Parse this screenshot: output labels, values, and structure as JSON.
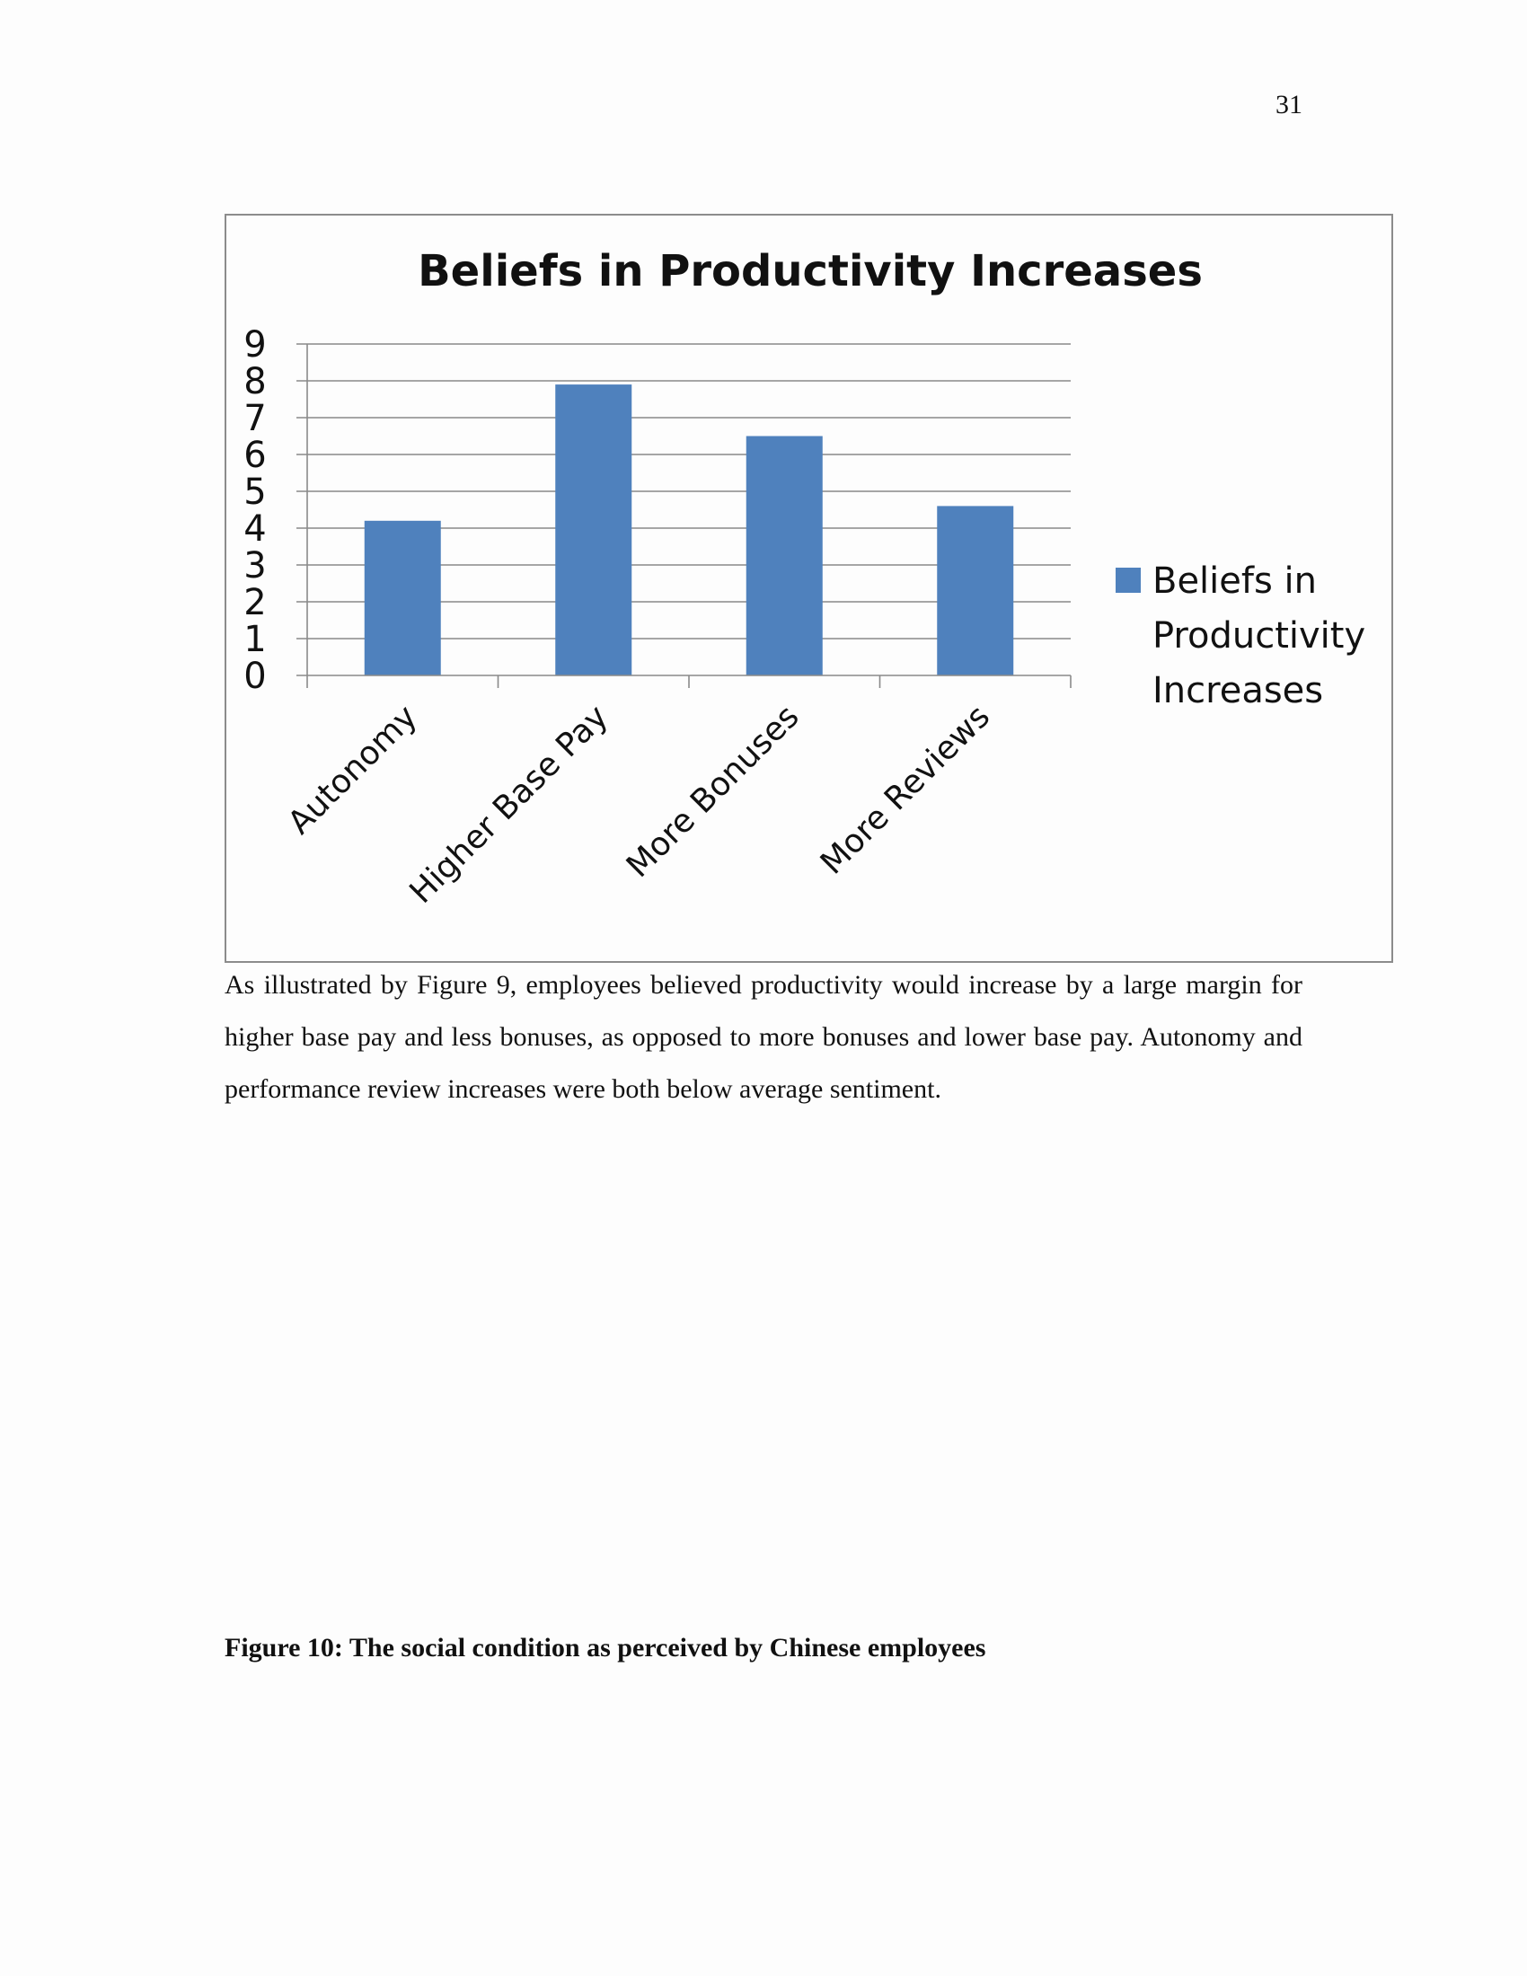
{
  "page_number": "31",
  "chart_data": {
    "type": "bar",
    "title": "Beliefs in Productivity Increases",
    "categories": [
      "Autonomy",
      "Higher Base Pay",
      "More Bonuses",
      "More Reviews"
    ],
    "series": [
      {
        "name": "Beliefs in Productivity Increases",
        "values": [
          4.2,
          7.9,
          6.5,
          4.6
        ],
        "color": "#4f81bd"
      }
    ],
    "ylim": [
      0,
      9
    ],
    "yticks": [
      "0",
      "1",
      "2",
      "3",
      "4",
      "5",
      "6",
      "7",
      "8",
      "9"
    ],
    "grid": true,
    "legend": "right",
    "legend_lines": [
      "Beliefs in",
      "Productivity",
      "Increases"
    ]
  },
  "body_text": "As illustrated by Figure 9, employees believed productivity would increase by a large margin for higher base pay and less bonuses, as opposed to more bonuses and lower base pay. Autonomy and performance review increases were both below average sentiment.",
  "figure_caption": "Figure 10: The social condition as perceived by Chinese employees"
}
